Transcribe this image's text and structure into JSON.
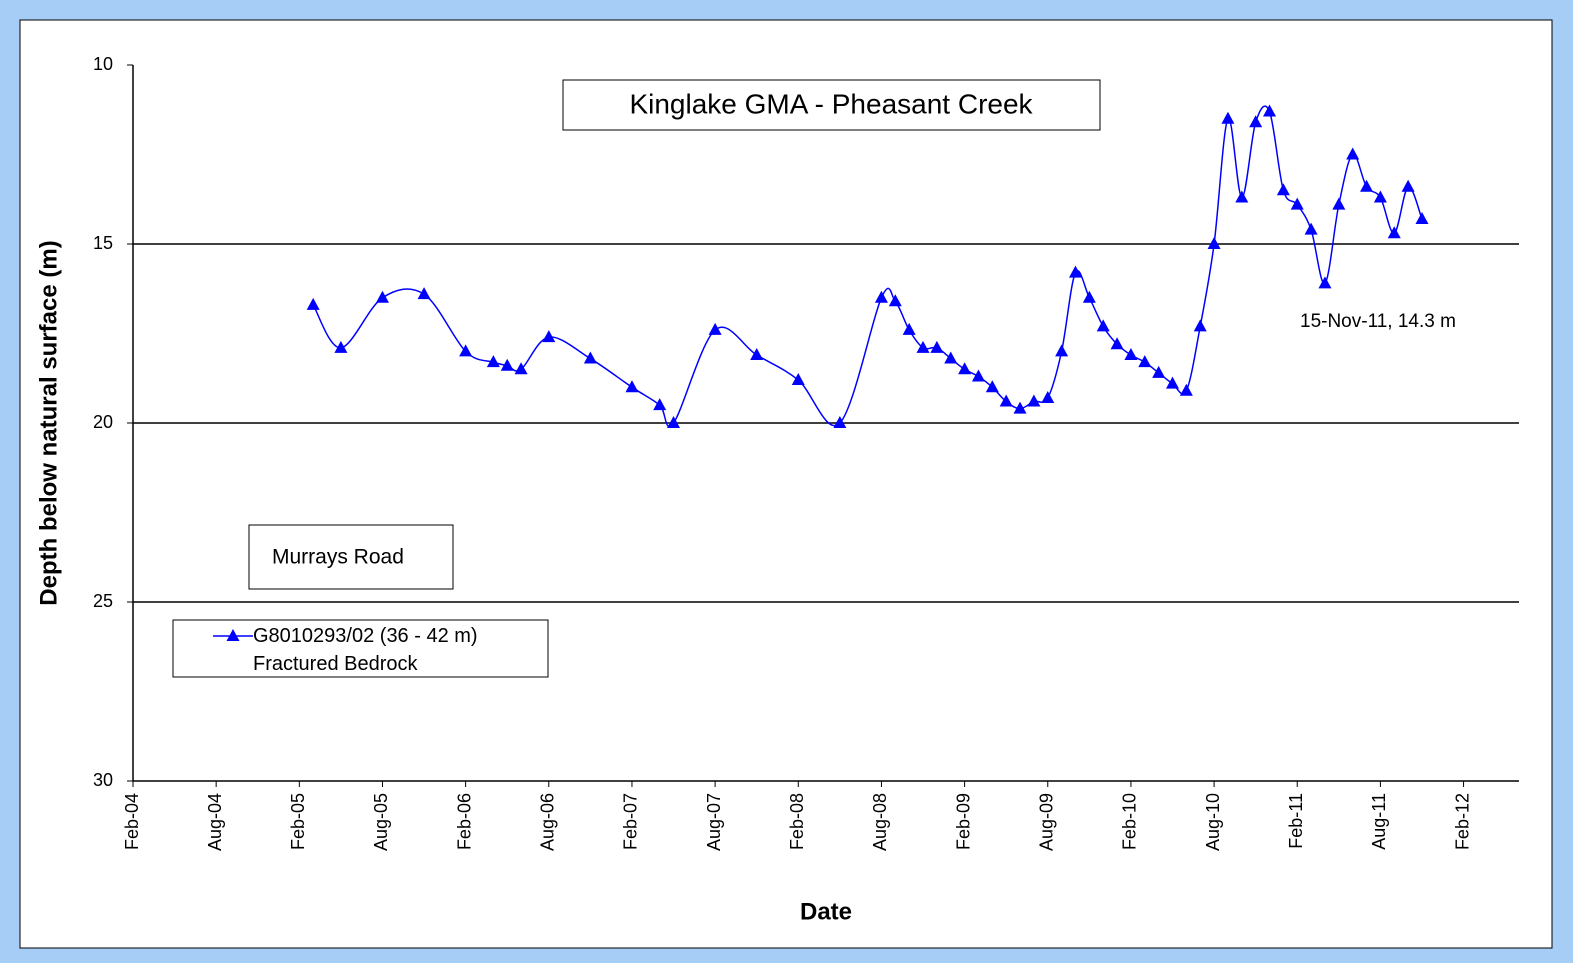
{
  "chart_data": {
    "type": "line",
    "title": "Kinglake GMA - Pheasant Creek",
    "subtitle": "Murrays Road",
    "annotation": "15-Nov-11, 14.3 m",
    "x_label": "Date",
    "y_label": "Depth below natural surface (m)",
    "y_inverted": true,
    "grid": true,
    "legend": "lower left",
    "x": [
      "2005-03",
      "2005-05",
      "2005-08",
      "2005-11",
      "2006-02",
      "2006-04",
      "2006-05",
      "2006-06",
      "2006-08",
      "2006-11",
      "2007-02",
      "2007-04",
      "2007-05",
      "2007-08",
      "2007-11",
      "2008-02",
      "2008-05",
      "2008-08",
      "2008-09",
      "2008-10",
      "2008-11",
      "2008-12",
      "2009-01",
      "2009-02",
      "2009-03",
      "2009-04",
      "2009-05",
      "2009-06",
      "2009-07",
      "2009-08",
      "2009-09",
      "2009-10",
      "2009-11",
      "2009-12",
      "2010-01",
      "2010-02",
      "2010-03",
      "2010-04",
      "2010-05",
      "2010-06",
      "2010-07",
      "2010-08",
      "2010-09",
      "2010-10",
      "2010-11",
      "2010-12",
      "2011-01",
      "2011-02",
      "2011-03",
      "2011-04",
      "2011-05",
      "2011-06",
      "2011-07",
      "2011-08",
      "2011-09",
      "2011-10",
      "2011-11"
    ],
    "series": [
      {
        "name": "G8010293/02 (36 - 42 m) Fractured Bedrock",
        "color": "#0000ff",
        "values": [
          16.7,
          17.9,
          16.5,
          16.4,
          18.0,
          18.3,
          18.4,
          18.5,
          17.6,
          18.2,
          19.0,
          19.5,
          20.0,
          17.4,
          18.1,
          18.8,
          20.0,
          16.5,
          16.6,
          17.4,
          17.9,
          17.9,
          18.2,
          18.5,
          18.7,
          19.0,
          19.4,
          19.6,
          19.4,
          19.3,
          18.0,
          15.8,
          16.5,
          17.3,
          17.8,
          18.1,
          18.3,
          18.6,
          18.9,
          19.1,
          17.3,
          15.0,
          11.5,
          13.7,
          11.6,
          11.3,
          13.5,
          13.9,
          14.6,
          16.1,
          13.9,
          12.5,
          13.4,
          13.7,
          14.7,
          13.4,
          14.3
        ]
      }
    ],
    "xlim": [
      "2004-02",
      "2012-06"
    ],
    "xticks": [
      {
        "value": "2004-02",
        "label": "Feb-04"
      },
      {
        "value": "2004-08",
        "label": "Aug-04"
      },
      {
        "value": "2005-02",
        "label": "Feb-05"
      },
      {
        "value": "2005-08",
        "label": "Aug-05"
      },
      {
        "value": "2006-02",
        "label": "Feb-06"
      },
      {
        "value": "2006-08",
        "label": "Aug-06"
      },
      {
        "value": "2007-02",
        "label": "Feb-07"
      },
      {
        "value": "2007-08",
        "label": "Aug-07"
      },
      {
        "value": "2008-02",
        "label": "Feb-08"
      },
      {
        "value": "2008-08",
        "label": "Aug-08"
      },
      {
        "value": "2009-02",
        "label": "Feb-09"
      },
      {
        "value": "2009-08",
        "label": "Aug-09"
      },
      {
        "value": "2010-02",
        "label": "Feb-10"
      },
      {
        "value": "2010-08",
        "label": "Aug-10"
      },
      {
        "value": "2011-02",
        "label": "Feb-11"
      },
      {
        "value": "2011-08",
        "label": "Aug-11"
      },
      {
        "value": "2012-02",
        "label": "Feb-12"
      }
    ],
    "ylim": [
      10,
      30
    ],
    "yticks": [
      10,
      15,
      20,
      25,
      30
    ]
  }
}
